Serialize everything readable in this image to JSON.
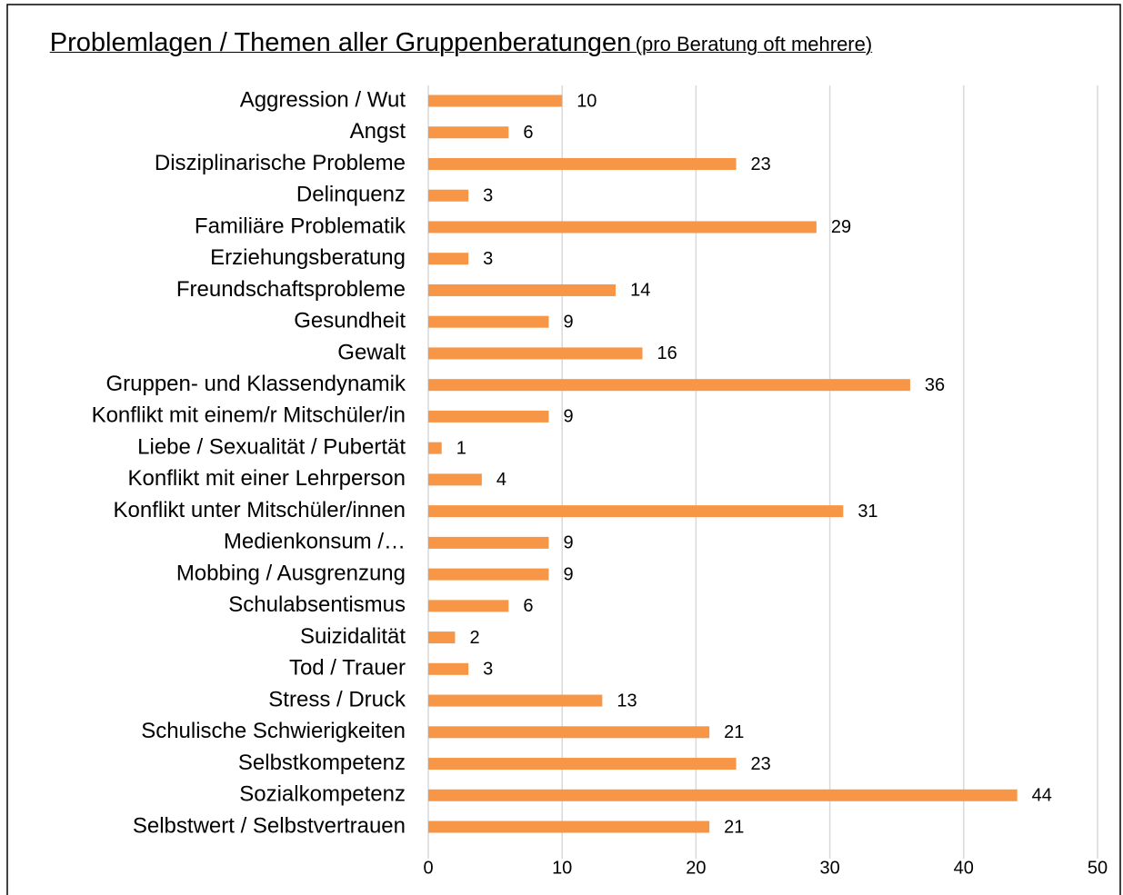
{
  "chart_data": {
    "type": "bar",
    "orientation": "horizontal",
    "title": "Problemlagen / Themen aller Gruppenberatungen",
    "subtitle": "(pro Beratung oft mehrere)",
    "categories": [
      "Aggression / Wut",
      "Angst",
      "Disziplinarische Probleme",
      "Delinquenz",
      "Familiäre Problematik",
      "Erziehungsberatung",
      "Freundschaftsprobleme",
      "Gesundheit",
      "Gewalt",
      "Gruppen- und Klassendynamik",
      "Konflikt mit einem/r Mitschüler/in",
      "Liebe / Sexualität / Pubertät",
      "Konflikt mit einer Lehrperson",
      "Konflikt unter Mitschüler/innen",
      "Medienkonsum /…",
      "Mobbing / Ausgrenzung",
      "Schulabsentismus",
      "Suizidalität",
      "Tod / Trauer",
      "Stress / Druck",
      "Schulische Schwierigkeiten",
      "Selbstkompetenz",
      "Sozialkompetenz",
      "Selbstwert / Selbstvertrauen"
    ],
    "values": [
      10,
      6,
      23,
      3,
      29,
      3,
      14,
      9,
      16,
      36,
      9,
      1,
      4,
      31,
      9,
      9,
      6,
      2,
      3,
      13,
      21,
      23,
      44,
      21
    ],
    "color": "#f79646",
    "xlim": [
      0,
      50
    ],
    "xticks": [
      0,
      10,
      20,
      30,
      40,
      50
    ],
    "grid": true
  }
}
